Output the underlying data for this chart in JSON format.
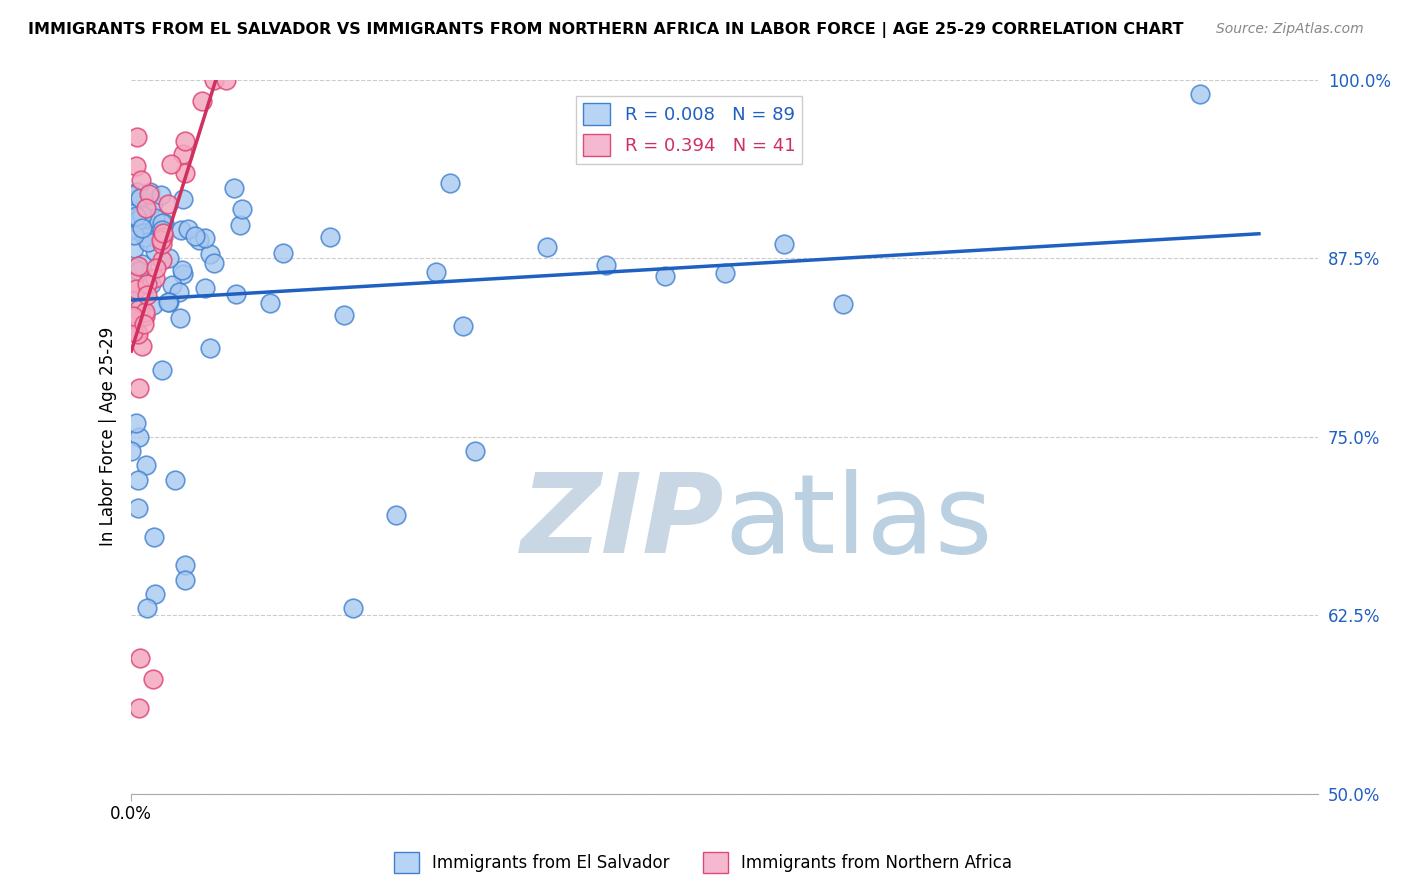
{
  "title": "IMMIGRANTS FROM EL SALVADOR VS IMMIGRANTS FROM NORTHERN AFRICA IN LABOR FORCE | AGE 25-29 CORRELATION CHART",
  "source": "Source: ZipAtlas.com",
  "ylabel": "In Labor Force | Age 25-29",
  "xlim": [
    0.0,
    1.0
  ],
  "ylim": [
    0.5,
    1.0
  ],
  "yticks": [
    0.5,
    0.625,
    0.75,
    0.875,
    1.0
  ],
  "ytick_labels": [
    "50.0%",
    "62.5%",
    "75.0%",
    "87.5%",
    "100.0%"
  ],
  "r_blue": 0.008,
  "n_blue": 89,
  "r_pink": 0.394,
  "n_pink": 41,
  "color_blue": "#a8c8f0",
  "color_pink": "#f4a8c0",
  "edge_blue": "#4080d0",
  "edge_pink": "#e04878",
  "line_color_blue": "#2060c0",
  "line_color_pink": "#d03060",
  "legend_fill_blue": "#b8d4f4",
  "legend_fill_pink": "#f4b8d0",
  "watermark_zip_color": "#c0d0e0",
  "watermark_atlas_color": "#b0c8dc"
}
